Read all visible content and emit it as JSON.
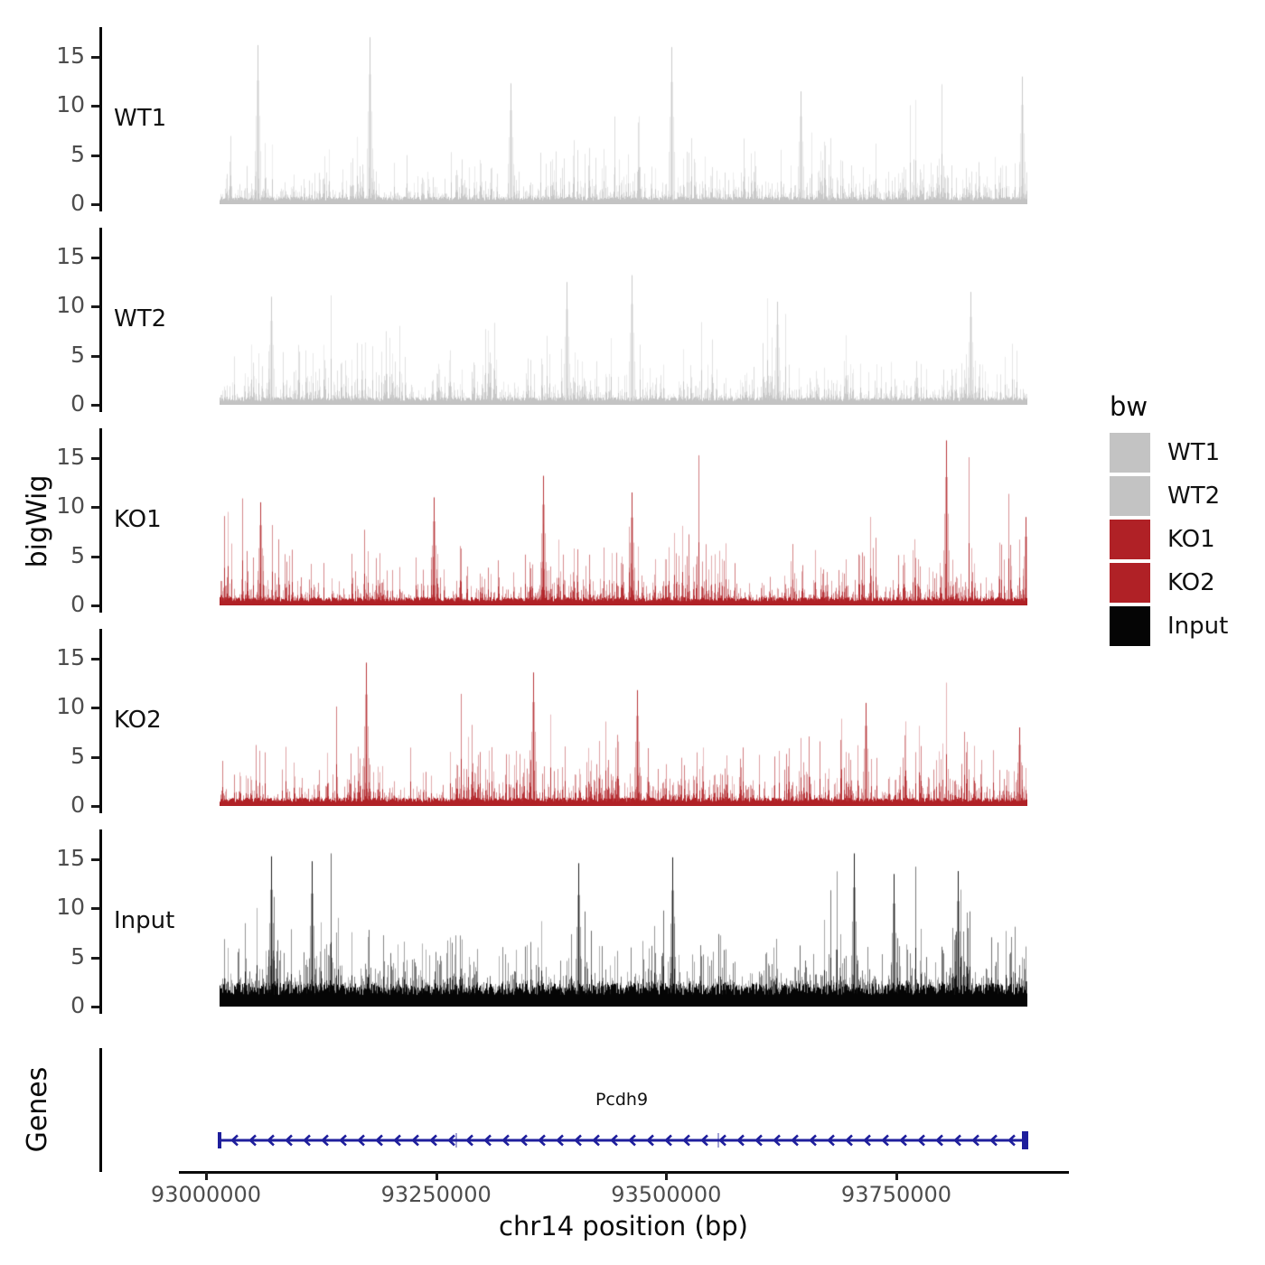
{
  "labels": {
    "genes_axis": "Genes"
  },
  "legend": {
    "title": "bw",
    "position": "right",
    "items": [
      {
        "label": "WT1",
        "color": "#c3c3c3"
      },
      {
        "label": "WT2",
        "color": "#c3c3c3"
      },
      {
        "label": "KO1",
        "color": "#b02126"
      },
      {
        "label": "KO2",
        "color": "#b02126"
      },
      {
        "label": "Input",
        "color": "#050505"
      }
    ]
  },
  "colors": {
    "wt_gray": "#c3c3c3",
    "ko_red": "#b02126",
    "input_black": "#050505",
    "gene_blue": "#1e1e9c",
    "tick_text_gray": "#4d4d4d",
    "axis_black": "#0a0a0a"
  },
  "chart_data": {
    "type": "area",
    "subtype": "genome-coverage-tracks",
    "title": "",
    "xlabel": "chr14 position (bp)",
    "ylabel": "bigWig",
    "chromosome": "chr14",
    "x_domain": [
      92970000,
      93937000
    ],
    "data_region": [
      93015000,
      93892000
    ],
    "ylim": [
      0,
      17
    ],
    "y_ticks": [
      15,
      10,
      5,
      0
    ],
    "x_ticks": [
      93000000,
      93250000,
      93500000,
      93750000
    ],
    "grid": false,
    "legend_position": "right",
    "tracks": [
      {
        "name": "WT1",
        "color": "#c3c3c3",
        "approx_mean": 2.0,
        "approx_max": 17,
        "peaks_bp": [
          [
            93056000,
            16.2
          ],
          [
            93178000,
            17.0
          ],
          [
            93330700,
            12.3
          ],
          [
            93506000,
            16.0
          ],
          [
            93646000,
            11.5
          ],
          [
            93886000,
            13.0
          ]
        ],
        "sim": {
          "seed": 101,
          "base": 0.25,
          "lambda": 2.7,
          "spikeP": 0.07,
          "spikeAdd": 5.5,
          "max": 17.2,
          "floor": 0.55
        }
      },
      {
        "name": "WT2",
        "color": "#c3c3c3",
        "approx_mean": 1.9,
        "approx_max": 13.4,
        "peaks_bp": [
          [
            93071000,
            11.0
          ],
          [
            93392000,
            12.5
          ],
          [
            93462000,
            13.2
          ],
          [
            93620000,
            10.5
          ],
          [
            93830600,
            11.5
          ]
        ],
        "sim": {
          "seed": 202,
          "base": 0.25,
          "lambda": 2.5,
          "spikeP": 0.06,
          "spikeAdd": 4.8,
          "max": 13.4,
          "floor": 0.55
        }
      },
      {
        "name": "KO1",
        "color": "#b02126",
        "approx_mean": 2.3,
        "approx_max": 16.9,
        "peaks_bp": [
          [
            93058850,
            10.5
          ],
          [
            93247400,
            11.0
          ],
          [
            93365800,
            13.2
          ],
          [
            93462300,
            11.5
          ],
          [
            93804300,
            16.8
          ],
          [
            93890000,
            9.0
          ]
        ],
        "sim": {
          "seed": 303,
          "base": 0.3,
          "lambda": 2.8,
          "spikeP": 0.08,
          "spikeAdd": 5.2,
          "max": 16.9,
          "floor": 0.6
        }
      },
      {
        "name": "KO2",
        "color": "#b02126",
        "approx_mean": 2.3,
        "approx_max": 14.7,
        "peaks_bp": [
          [
            93173700,
            14.6
          ],
          [
            93355300,
            13.6
          ],
          [
            93468400,
            11.8
          ],
          [
            93716600,
            10.5
          ],
          [
            93883200,
            8.0
          ]
        ],
        "sim": {
          "seed": 404,
          "base": 0.3,
          "lambda": 2.8,
          "spikeP": 0.08,
          "spikeAdd": 5.2,
          "max": 14.7,
          "floor": 0.6
        }
      },
      {
        "name": "Input",
        "color": "#050505",
        "approx_mean": 4.0,
        "approx_max": 15.6,
        "peaks_bp": [
          [
            93071100,
            15.3
          ],
          [
            93115000,
            14.8
          ],
          [
            93404400,
            14.6
          ],
          [
            93506100,
            15.2
          ],
          [
            93703400,
            15.6
          ],
          [
            93747300,
            13.5
          ],
          [
            93816600,
            13.8
          ]
        ],
        "sim": {
          "seed": 505,
          "base": 1.6,
          "lambda": 3.0,
          "spikeP": 0.12,
          "spikeAdd": 5.5,
          "max": 15.6,
          "floor": 1.7
        }
      }
    ],
    "genes": [
      {
        "name": "Pcdh9",
        "strand": "-",
        "start_bp": 93015000,
        "end_bp": 93889000,
        "exon_ticks_bp": [
          93271900,
          93556600
        ]
      }
    ]
  }
}
